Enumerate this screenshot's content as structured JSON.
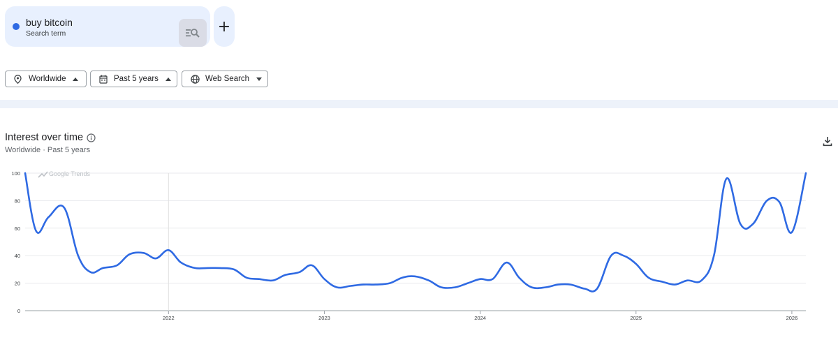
{
  "search_terms": [
    {
      "name": "buy bitcoin",
      "type": "Search term",
      "color": "#2f6ae3",
      "icon": "compare-search-icon"
    }
  ],
  "add_term_icon": "plus-icon",
  "filters": [
    {
      "label": "Worldwide",
      "icon": "location-pin-icon",
      "caret": "up"
    },
    {
      "label": "Past 5 years",
      "icon": "calendar-icon",
      "caret": "up"
    },
    {
      "label": "Web Search",
      "icon": "globe-icon",
      "caret": "down"
    }
  ],
  "panel": {
    "title": "Interest over time",
    "subtitle": "Worldwide · Past 5 years",
    "watermark": "Google Trends",
    "info_icon": "info-icon",
    "download_icon": "download-icon"
  },
  "chart_data": {
    "type": "line",
    "title": "Interest over time",
    "xlabel": "",
    "ylabel": "",
    "ylim": [
      0,
      100
    ],
    "yticks": [
      0,
      20,
      40,
      60,
      80,
      100
    ],
    "xlim": [
      2021.08,
      2026.09
    ],
    "xticks": [
      {
        "label": "2022",
        "x": 2022.0
      },
      {
        "label": "2023",
        "x": 2023.0
      },
      {
        "label": "2024",
        "x": 2024.0
      },
      {
        "label": "2025",
        "x": 2025.0
      },
      {
        "label": "2026",
        "x": 2026.0
      }
    ],
    "grid": true,
    "series": [
      {
        "color": "#2f6ae3",
        "x": [
          2021.08,
          2021.15,
          2021.23,
          2021.33,
          2021.42,
          2021.5,
          2021.58,
          2021.67,
          2021.75,
          2021.84,
          2021.92,
          2022.0,
          2022.08,
          2022.17,
          2022.25,
          2022.33,
          2022.42,
          2022.5,
          2022.58,
          2022.67,
          2022.75,
          2022.84,
          2022.92,
          2023.0,
          2023.08,
          2023.17,
          2023.25,
          2023.33,
          2023.42,
          2023.5,
          2023.58,
          2023.67,
          2023.75,
          2023.84,
          2023.92,
          2024.0,
          2024.08,
          2024.17,
          2024.25,
          2024.33,
          2024.42,
          2024.5,
          2024.58,
          2024.67,
          2024.75,
          2024.84,
          2024.92,
          2025.0,
          2025.08,
          2025.17,
          2025.25,
          2025.33,
          2025.42,
          2025.5,
          2025.58,
          2025.67,
          2025.75,
          2025.84,
          2025.92,
          2026.0,
          2026.09
        ],
        "values": [
          100,
          58,
          68,
          75,
          40,
          28,
          31,
          33,
          41,
          42,
          38,
          44,
          35,
          31,
          31,
          31,
          30,
          24,
          23,
          22,
          26,
          28,
          33,
          23,
          17,
          18,
          19,
          19,
          20,
          24,
          25,
          22,
          17,
          17,
          20,
          23,
          23,
          35,
          24,
          17,
          17,
          19,
          19,
          16,
          16,
          40,
          40,
          34,
          24,
          21,
          19,
          22,
          22,
          40,
          96,
          63,
          63,
          80,
          79,
          57,
          100
        ]
      }
    ]
  }
}
